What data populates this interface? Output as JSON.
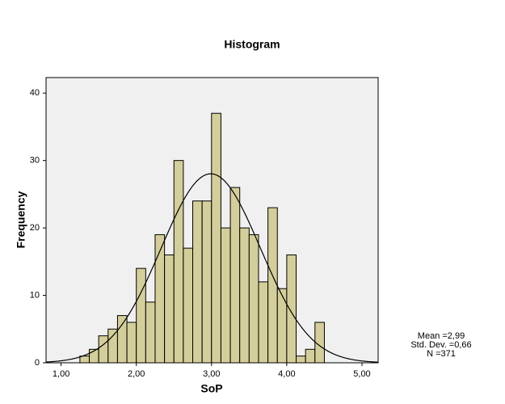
{
  "chart_data": {
    "type": "histogram",
    "title": "Histogram",
    "x_label": "SoP",
    "y_label": "Frequency",
    "bins": [
      1.25,
      1.375,
      1.5,
      1.625,
      1.75,
      1.875,
      2.0,
      2.125,
      2.25,
      2.375,
      2.5,
      2.625,
      2.75,
      2.875,
      3.0,
      3.125,
      3.25,
      3.375,
      3.5,
      3.625,
      3.75,
      3.875,
      4.0,
      4.125,
      4.25,
      4.375,
      4.5
    ],
    "counts": [
      1,
      2,
      4,
      5,
      7,
      6,
      14,
      9,
      19,
      16,
      30,
      17,
      24,
      24,
      37,
      20,
      26,
      20,
      19,
      12,
      23,
      11,
      16,
      1,
      2,
      6
    ],
    "color": "#d4cf9a",
    "xlim": [
      0.8,
      5.215
    ],
    "ylim": [
      0,
      42.3
    ],
    "xticks": [
      {
        "value": 1,
        "label": "1,00"
      },
      {
        "value": 2,
        "label": "2,00"
      },
      {
        "value": 3,
        "label": "3,00"
      },
      {
        "value": 4,
        "label": "4,00"
      },
      {
        "value": 5,
        "label": "5,00"
      }
    ],
    "yticks": [
      0,
      10,
      20,
      30,
      40
    ],
    "normal_curve": true,
    "stats": [
      {
        "value": 2.99,
        "label": "Mean =2,99"
      },
      {
        "value": 0.66,
        "label": "Std. Dev. =0,66"
      },
      {
        "value": 371,
        "label": "N =371"
      }
    ]
  }
}
